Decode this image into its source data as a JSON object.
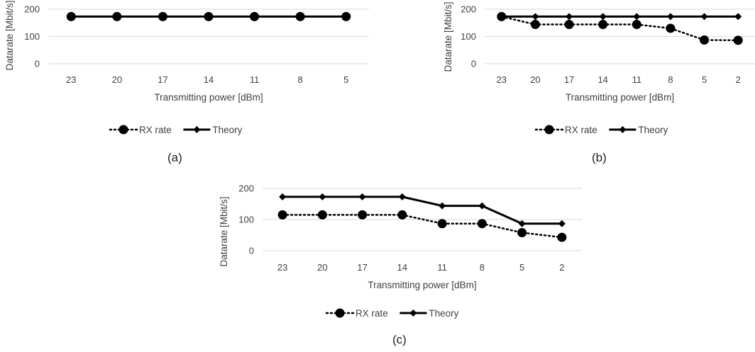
{
  "chart_data": [
    {
      "type": "line",
      "panel": "a",
      "caption": "(a)",
      "categories": [
        "23",
        "20",
        "17",
        "14",
        "11",
        "8",
        "5"
      ],
      "series": [
        {
          "name": "RX rate",
          "values": [
            173,
            173,
            173,
            173,
            173,
            173,
            173
          ],
          "style": "dotted",
          "marker": "circle"
        },
        {
          "name": "Theory",
          "values": [
            173,
            173,
            173,
            173,
            173,
            173,
            173
          ],
          "style": "solid",
          "marker": "diamond"
        }
      ],
      "yticks": [
        "0",
        "100",
        "200"
      ],
      "ylim": [
        0,
        200
      ],
      "xlabel": "Transmitting power [dBm]",
      "ylabel": "Datarate [Mbit/s]",
      "grid": "horizontal",
      "legend": "bottom"
    },
    {
      "type": "line",
      "panel": "b",
      "caption": "(b)",
      "categories": [
        "23",
        "20",
        "17",
        "14",
        "11",
        "8",
        "5",
        "2"
      ],
      "series": [
        {
          "name": "RX rate",
          "values": [
            173,
            144,
            144,
            144,
            144,
            130,
            87,
            86
          ],
          "style": "dotted",
          "marker": "circle"
        },
        {
          "name": "Theory",
          "values": [
            173,
            173,
            173,
            173,
            173,
            173,
            173,
            173
          ],
          "style": "solid",
          "marker": "diamond"
        }
      ],
      "yticks": [
        "0",
        "100",
        "200"
      ],
      "ylim": [
        0,
        200
      ],
      "xlabel": "Transmitting power [dBm]",
      "ylabel": "Datarate [Mbit/s]",
      "grid": "horizontal",
      "legend": "bottom"
    },
    {
      "type": "line",
      "panel": "c",
      "caption": "(c)",
      "categories": [
        "23",
        "20",
        "17",
        "14",
        "11",
        "8",
        "5",
        "2"
      ],
      "series": [
        {
          "name": "RX rate",
          "values": [
            115,
            115,
            115,
            115,
            87,
            87,
            58,
            43
          ],
          "style": "dotted",
          "marker": "circle"
        },
        {
          "name": "Theory",
          "values": [
            173,
            173,
            173,
            173,
            144,
            144,
            87,
            87
          ],
          "style": "solid",
          "marker": "diamond"
        }
      ],
      "yticks": [
        "0",
        "100",
        "200"
      ],
      "ylim": [
        0,
        200
      ],
      "xlabel": "Transmitting power [dBm]",
      "ylabel": "Datarate [Mbit/s]",
      "grid": "horizontal",
      "legend": "bottom"
    }
  ],
  "colors": {
    "line": "#000000",
    "grid": "#d9d9d9",
    "text": "#404040"
  }
}
